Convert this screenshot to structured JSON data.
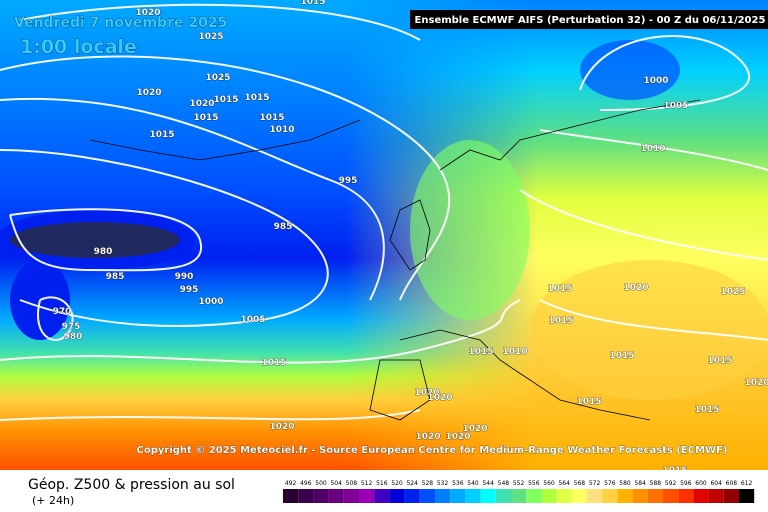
{
  "header": {
    "title": "Ensemble ECMWF AIFS  (Perturbation 32)  - 00 Z du 06/11/2025",
    "date": "Vendredi 7 novembre 2025",
    "time": "1:00 locale"
  },
  "copyright": "Copyright © 2025 Meteociel.fr - Source European Centre for Medium-Range Weather Forecasts (ECMWF)",
  "footer": {
    "title": "Géop. Z500 & pression au sol",
    "subtitle": "(+ 24h)"
  },
  "scale": {
    "values": [
      492,
      496,
      500,
      504,
      508,
      512,
      516,
      520,
      524,
      528,
      532,
      536,
      540,
      544,
      548,
      552,
      556,
      560,
      564,
      568,
      572,
      576,
      580,
      584,
      588,
      592,
      596,
      600,
      604,
      608,
      612
    ],
    "colors": [
      "#2a0030",
      "#3c0050",
      "#500064",
      "#6a0082",
      "#800096",
      "#9a00b4",
      "#4000c0",
      "#0000d8",
      "#0020f0",
      "#0050ff",
      "#0080ff",
      "#00aaff",
      "#00d0ff",
      "#00ffff",
      "#40e0b0",
      "#60e080",
      "#80ff60",
      "#b0ff40",
      "#e0ff40",
      "#ffff60",
      "#ffe080",
      "#ffd040",
      "#ffb000",
      "#ff9000",
      "#ff7000",
      "#ff5000",
      "#ff3000",
      "#e00000",
      "#c00000",
      "#900000",
      "#000000"
    ]
  },
  "isobars": [
    1015,
    1020,
    1025,
    1025,
    1020,
    1020,
    1015,
    1015,
    1015,
    1015,
    1010,
    1015,
    995,
    985,
    980,
    985,
    990,
    995,
    1000,
    1005,
    970,
    975,
    980,
    1015,
    1020,
    1000,
    1005,
    1010,
    1015,
    1020,
    1025,
    1015,
    1015,
    1010,
    1015,
    1015,
    1020,
    1020,
    1020,
    1015,
    1015,
    1020,
    1020,
    1020,
    1015
  ]
}
